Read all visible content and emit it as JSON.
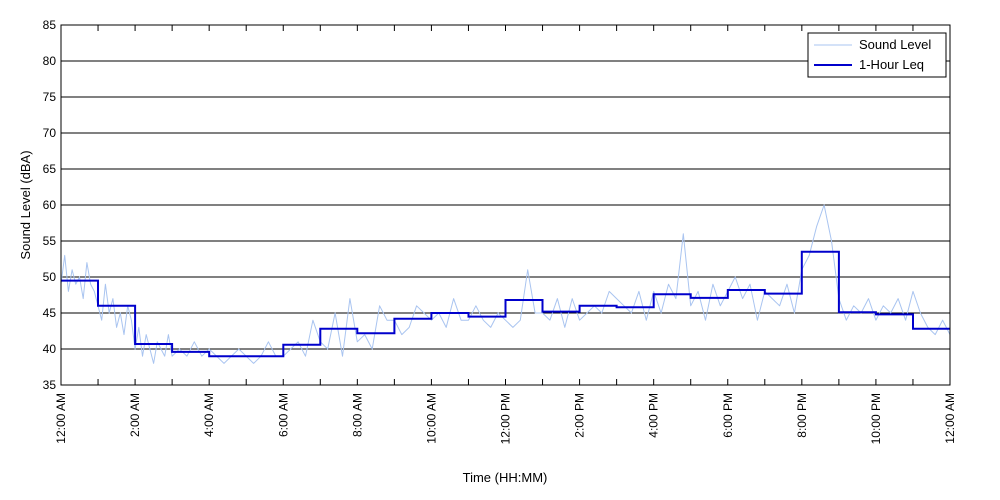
{
  "chart_data": {
    "type": "line",
    "title": "",
    "xlabel": "Time (HH:MM)",
    "ylabel": "Sound Level (dBA)",
    "ylim": [
      35,
      85
    ],
    "yticks": [
      35,
      40,
      45,
      50,
      55,
      60,
      65,
      70,
      75,
      80,
      85
    ],
    "xlim_hours": [
      0,
      24
    ],
    "x_tick_hours": [
      0,
      2,
      4,
      6,
      8,
      10,
      12,
      14,
      16,
      18,
      20,
      22,
      24
    ],
    "x_tick_labels": [
      "12:00 AM",
      "2:00 AM",
      "4:00 AM",
      "6:00 AM",
      "8:00 AM",
      "10:00 AM",
      "12:00 PM",
      "2:00 PM",
      "4:00 PM",
      "6:00 PM",
      "8:00 PM",
      "10:00 PM",
      "12:00 AM"
    ],
    "grid": "horizontal",
    "legend_position": "top-right",
    "series": [
      {
        "name": "Sound Level",
        "color": "#a9c4f0",
        "x_hours": [
          0,
          0.1,
          0.2,
          0.3,
          0.4,
          0.5,
          0.6,
          0.7,
          0.8,
          0.9,
          1.0,
          1.1,
          1.2,
          1.3,
          1.4,
          1.5,
          1.6,
          1.7,
          1.8,
          1.9,
          2.0,
          2.1,
          2.2,
          2.3,
          2.4,
          2.5,
          2.6,
          2.7,
          2.8,
          2.9,
          3.0,
          3.2,
          3.4,
          3.6,
          3.8,
          4.0,
          4.2,
          4.4,
          4.6,
          4.8,
          5.0,
          5.2,
          5.4,
          5.6,
          5.8,
          6.0,
          6.2,
          6.4,
          6.6,
          6.8,
          7.0,
          7.2,
          7.4,
          7.6,
          7.8,
          8.0,
          8.2,
          8.4,
          8.6,
          8.8,
          9.0,
          9.2,
          9.4,
          9.6,
          9.8,
          10.0,
          10.2,
          10.4,
          10.6,
          10.8,
          11.0,
          11.2,
          11.4,
          11.6,
          11.8,
          12.0,
          12.2,
          12.4,
          12.6,
          12.8,
          13.0,
          13.2,
          13.4,
          13.6,
          13.8,
          14.0,
          14.2,
          14.4,
          14.6,
          14.8,
          15.0,
          15.2,
          15.4,
          15.6,
          15.8,
          16.0,
          16.2,
          16.4,
          16.6,
          16.8,
          17.0,
          17.2,
          17.4,
          17.6,
          17.8,
          18.0,
          18.2,
          18.4,
          18.6,
          18.8,
          19.0,
          19.2,
          19.4,
          19.6,
          19.8,
          20.0,
          20.2,
          20.4,
          20.6,
          20.8,
          21.0,
          21.2,
          21.4,
          21.6,
          21.8,
          22.0,
          22.2,
          22.4,
          22.6,
          22.8,
          23.0,
          23.2,
          23.4,
          23.6,
          23.8,
          24.0
        ],
        "values": [
          49,
          53,
          48,
          51,
          49,
          50,
          47,
          52,
          49,
          48,
          46,
          44,
          49,
          45,
          47,
          43,
          45,
          42,
          46,
          44,
          40,
          43,
          39,
          42,
          40,
          38,
          41,
          40,
          39,
          42,
          39,
          40,
          39,
          41,
          39,
          40,
          39,
          38,
          39,
          40,
          39,
          38,
          39,
          41,
          39,
          39,
          40,
          41,
          39,
          44,
          41,
          40,
          45,
          39,
          47,
          41,
          42,
          40,
          46,
          44,
          44,
          42,
          43,
          46,
          45,
          44,
          45,
          43,
          47,
          44,
          44,
          46,
          44,
          43,
          45,
          44,
          43,
          44,
          51,
          45,
          45,
          44,
          47,
          43,
          47,
          44,
          45,
          46,
          45,
          48,
          47,
          46,
          45,
          48,
          44,
          48,
          45,
          49,
          47,
          56,
          46,
          48,
          44,
          49,
          46,
          48,
          50,
          47,
          49,
          44,
          48,
          47,
          46,
          49,
          45,
          51,
          53,
          57,
          60,
          55,
          47,
          44,
          46,
          45,
          47,
          44,
          46,
          45,
          47,
          44,
          48,
          45,
          43,
          42,
          44,
          42
        ]
      },
      {
        "name": "1-Hour Leq",
        "color": "#0000cc",
        "step_hours": [
          0,
          1,
          2,
          3,
          4,
          5,
          6,
          7,
          8,
          9,
          10,
          11,
          12,
          13,
          14,
          15,
          16,
          17,
          18,
          19,
          20,
          21,
          22,
          23,
          24
        ],
        "values": [
          49.5,
          46.0,
          40.7,
          39.6,
          39.0,
          39.0,
          40.6,
          42.8,
          42.2,
          44.2,
          45.0,
          44.5,
          46.8,
          45.2,
          46.0,
          45.8,
          47.6,
          47.1,
          48.2,
          47.7,
          53.5,
          45.1,
          44.8,
          42.8
        ]
      }
    ]
  }
}
